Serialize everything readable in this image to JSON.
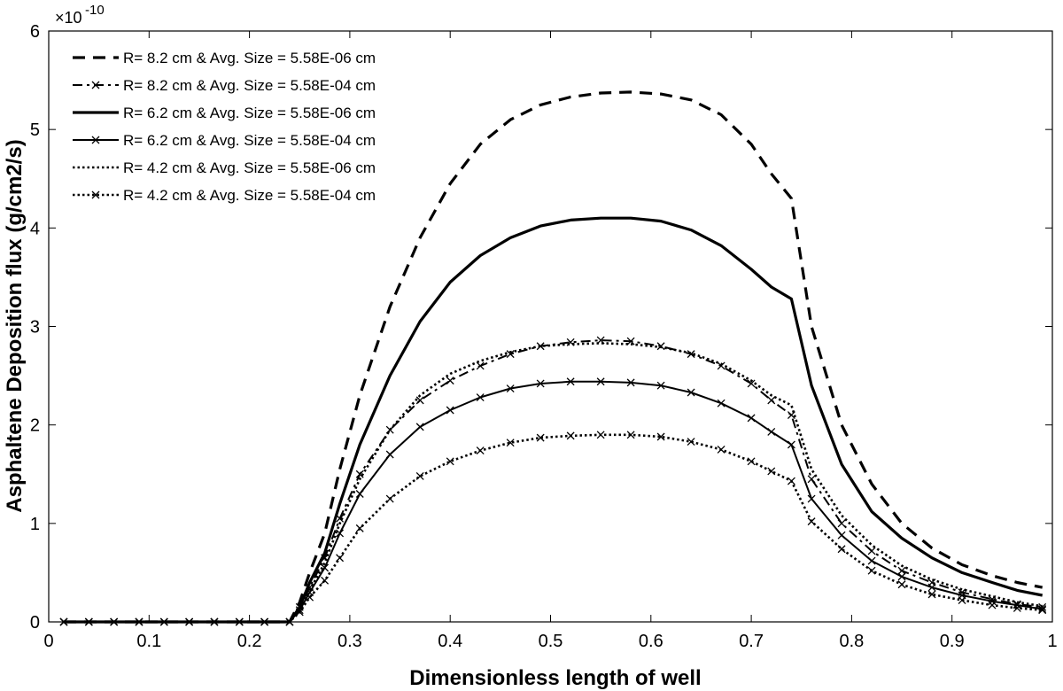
{
  "chart_data": {
    "type": "line",
    "xlabel": "Dimensionless length of well",
    "ylabel": "Asphaltene Deposition flux (g/cm2/s)",
    "y_multiplier": "×10",
    "y_exponent": "-10",
    "xlim": [
      0,
      1
    ],
    "ylim": [
      0,
      6
    ],
    "x_ticks": [
      "0",
      "0.1",
      "0.2",
      "0.3",
      "0.4",
      "0.5",
      "0.6",
      "0.7",
      "0.8",
      "0.9",
      "1"
    ],
    "y_ticks": [
      "0",
      "1",
      "2",
      "3",
      "4",
      "5",
      "6"
    ],
    "grid": false,
    "legend_position": "top-left",
    "x": [
      0.015,
      0.04,
      0.065,
      0.09,
      0.115,
      0.14,
      0.165,
      0.19,
      0.215,
      0.24,
      0.25,
      0.26,
      0.275,
      0.29,
      0.31,
      0.34,
      0.37,
      0.4,
      0.43,
      0.46,
      0.49,
      0.52,
      0.55,
      0.58,
      0.61,
      0.64,
      0.67,
      0.7,
      0.72,
      0.74,
      0.76,
      0.79,
      0.82,
      0.85,
      0.88,
      0.91,
      0.94,
      0.965,
      0.99
    ],
    "series": [
      {
        "name": "R= 8.2 cm & Avg. Size = 5.58E-06 cm",
        "style": "dashed",
        "markers": false,
        "values": [
          0,
          0,
          0,
          0,
          0,
          0,
          0,
          0,
          0,
          0,
          0.2,
          0.5,
          0.9,
          1.55,
          2.3,
          3.2,
          3.9,
          4.45,
          4.85,
          5.1,
          5.25,
          5.33,
          5.37,
          5.38,
          5.36,
          5.3,
          5.15,
          4.85,
          4.55,
          4.3,
          3.0,
          2.0,
          1.4,
          1.0,
          0.75,
          0.58,
          0.47,
          0.4,
          0.35
        ]
      },
      {
        "name": "R= 8.2 cm & Avg. Size = 5.58E-04 cm",
        "style": "dashdot",
        "markers": true,
        "values": [
          0,
          0,
          0,
          0,
          0,
          0,
          0,
          0,
          0,
          0,
          0.15,
          0.35,
          0.65,
          1.05,
          1.5,
          1.95,
          2.25,
          2.45,
          2.6,
          2.72,
          2.8,
          2.84,
          2.86,
          2.85,
          2.8,
          2.72,
          2.6,
          2.42,
          2.25,
          2.1,
          1.45,
          1.0,
          0.72,
          0.52,
          0.4,
          0.3,
          0.23,
          0.18,
          0.15
        ]
      },
      {
        "name": "R= 6.2 cm & Avg. Size = 5.58E-06 cm",
        "style": "solid-thick",
        "markers": false,
        "values": [
          0,
          0,
          0,
          0,
          0,
          0,
          0,
          0,
          0,
          0,
          0.15,
          0.4,
          0.7,
          1.2,
          1.8,
          2.5,
          3.05,
          3.45,
          3.72,
          3.9,
          4.02,
          4.08,
          4.1,
          4.1,
          4.07,
          3.98,
          3.82,
          3.58,
          3.4,
          3.28,
          2.4,
          1.6,
          1.12,
          0.85,
          0.65,
          0.5,
          0.4,
          0.32,
          0.27
        ]
      },
      {
        "name": "R= 6.2 cm & Avg. Size = 5.58E-04 cm",
        "style": "solid-thin",
        "markers": true,
        "values": [
          0,
          0,
          0,
          0,
          0,
          0,
          0,
          0,
          0,
          0,
          0.12,
          0.3,
          0.55,
          0.9,
          1.3,
          1.7,
          1.98,
          2.15,
          2.28,
          2.37,
          2.42,
          2.44,
          2.44,
          2.43,
          2.4,
          2.33,
          2.22,
          2.07,
          1.93,
          1.8,
          1.25,
          0.88,
          0.62,
          0.46,
          0.35,
          0.27,
          0.21,
          0.17,
          0.13
        ]
      },
      {
        "name": "R= 4.2 cm & Avg. Size = 5.58E-06 cm",
        "style": "dotted",
        "markers": false,
        "values": [
          0,
          0,
          0,
          0,
          0,
          0,
          0,
          0,
          0,
          0,
          0.12,
          0.32,
          0.6,
          1.0,
          1.45,
          1.95,
          2.3,
          2.52,
          2.65,
          2.74,
          2.8,
          2.82,
          2.83,
          2.82,
          2.79,
          2.73,
          2.62,
          2.45,
          2.3,
          2.2,
          1.55,
          1.08,
          0.78,
          0.57,
          0.43,
          0.33,
          0.26,
          0.2,
          0.16
        ]
      },
      {
        "name": "R= 4.2 cm & Avg. Size = 5.58E-04 cm",
        "style": "dotted",
        "markers": true,
        "values": [
          0,
          0,
          0,
          0,
          0,
          0,
          0,
          0,
          0,
          0,
          0.1,
          0.25,
          0.42,
          0.65,
          0.95,
          1.25,
          1.48,
          1.63,
          1.74,
          1.82,
          1.87,
          1.89,
          1.9,
          1.9,
          1.88,
          1.83,
          1.75,
          1.63,
          1.53,
          1.43,
          1.02,
          0.74,
          0.52,
          0.38,
          0.28,
          0.22,
          0.17,
          0.14,
          0.12
        ]
      }
    ]
  }
}
